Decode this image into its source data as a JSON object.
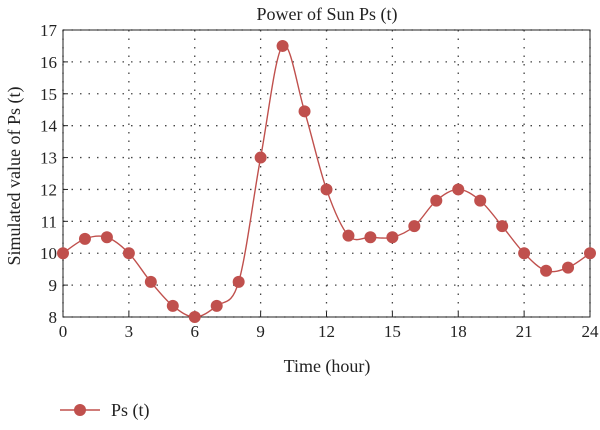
{
  "chart_data": {
    "type": "line",
    "title": "Power of Sun Ps (t)",
    "xlabel": "Time (hour)",
    "ylabel": "Simulated value of Ps (t)",
    "xlim": [
      0,
      24
    ],
    "ylim": [
      8,
      17
    ],
    "xticks": [
      "0",
      "3",
      "6",
      "9",
      "12",
      "15",
      "18",
      "21",
      "24"
    ],
    "yticks": [
      "8",
      "9",
      "10",
      "11",
      "12",
      "13",
      "14",
      "15",
      "16",
      "17"
    ],
    "grid": true,
    "smooth": true,
    "legend_position": "bottom-left",
    "series": [
      {
        "name": "Ps (t)",
        "color": "#c0504d",
        "x": [
          0,
          1,
          2,
          3,
          4,
          5,
          6,
          7,
          8,
          9,
          10,
          11,
          12,
          13,
          14,
          15,
          16,
          17,
          18,
          19,
          20,
          21,
          22,
          23,
          24
        ],
        "values": [
          10.0,
          10.45,
          10.5,
          10.0,
          9.1,
          8.35,
          8.0,
          8.35,
          9.1,
          13.0,
          16.5,
          14.45,
          12.0,
          10.55,
          10.5,
          10.5,
          10.85,
          11.65,
          12.0,
          11.65,
          10.85,
          10.0,
          9.45,
          9.55,
          10.0
        ]
      }
    ]
  }
}
